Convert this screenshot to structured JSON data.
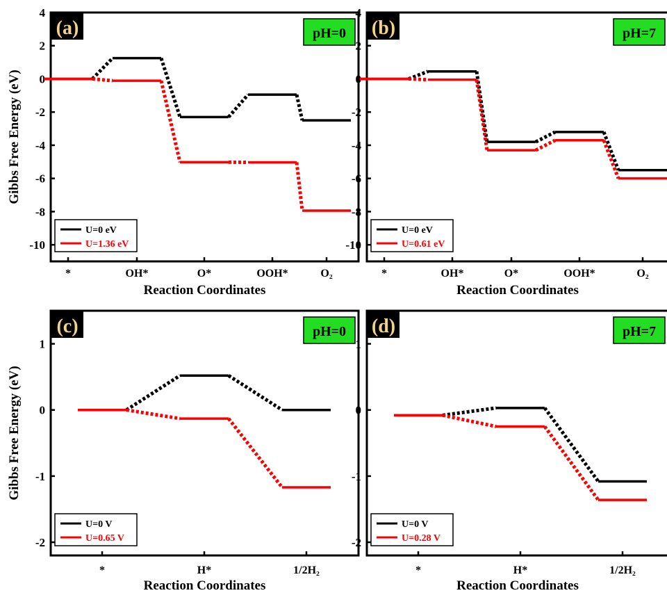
{
  "chart_data": [
    {
      "type": "line",
      "panel_label": "(a)",
      "condition": "pH=0",
      "xlabel": "Reaction Coordinates",
      "ylabel": "Gibbs Free Energy (eV)",
      "ylim": [
        -11,
        4
      ],
      "yticks": [
        4,
        2,
        0,
        -2,
        -4,
        -6,
        -8,
        -10
      ],
      "categories": [
        "*",
        "OH*",
        "O*",
        "OOH*",
        "O₂"
      ],
      "legend_position": "bottom-left",
      "series": [
        {
          "name": "U=0 eV",
          "color": "#000000",
          "values": [
            0,
            1.25,
            -2.3,
            -0.95,
            -2.5
          ]
        },
        {
          "name": "U=1.36 eV",
          "color": "#ff0000",
          "values": [
            0,
            -0.11,
            -5.02,
            -5.03,
            -7.94
          ]
        }
      ]
    },
    {
      "type": "line",
      "panel_label": "(b)",
      "condition": "pH=7",
      "xlabel": "Reaction Coordinates",
      "ylabel": "",
      "ylim": [
        -11,
        4
      ],
      "yticks": [
        4,
        2,
        0,
        -2,
        -4,
        -6,
        -8,
        -10
      ],
      "categories": [
        "*",
        "OH*",
        "O*",
        "OOH*",
        "O₂"
      ],
      "legend_position": "bottom-left",
      "series": [
        {
          "name": "U=0 eV",
          "color": "#000000",
          "values": [
            0,
            0.45,
            -3.8,
            -3.2,
            -5.5
          ]
        },
        {
          "name": "U=0.61 eV",
          "color": "#ff0000",
          "values": [
            0,
            -0.05,
            -4.3,
            -3.7,
            -6.0
          ]
        }
      ]
    },
    {
      "type": "line",
      "panel_label": "(c)",
      "condition": "pH=0",
      "xlabel": "Reaction Coordinates",
      "ylabel": "Gibbs Free Energy (eV)",
      "ylim": [
        -2.2,
        1.5
      ],
      "yticks": [
        1,
        0,
        -1,
        -2
      ],
      "categories": [
        "*",
        "H*",
        "1/2H₂"
      ],
      "legend_position": "bottom-left",
      "series": [
        {
          "name": "U=0 V",
          "color": "#000000",
          "values": [
            0,
            0.52,
            0
          ]
        },
        {
          "name": "U=0.65 V",
          "color": "#ff0000",
          "values": [
            0,
            -0.13,
            -1.17
          ]
        }
      ]
    },
    {
      "type": "line",
      "panel_label": "(d)",
      "condition": "pH=7",
      "xlabel": "Reaction Coordinates",
      "ylabel": "",
      "ylim": [
        -2.2,
        1.5
      ],
      "yticks": [
        1,
        0,
        -1,
        -2
      ],
      "categories": [
        "*",
        "H*",
        "1/2H₂"
      ],
      "legend_position": "bottom-left",
      "series": [
        {
          "name": "U=0 V",
          "color": "#000000",
          "values": [
            -0.08,
            0.03,
            -1.08
          ]
        },
        {
          "name": "U=0.28 V",
          "color": "#ff0000",
          "values": [
            -0.08,
            -0.25,
            -1.36
          ]
        }
      ]
    }
  ]
}
